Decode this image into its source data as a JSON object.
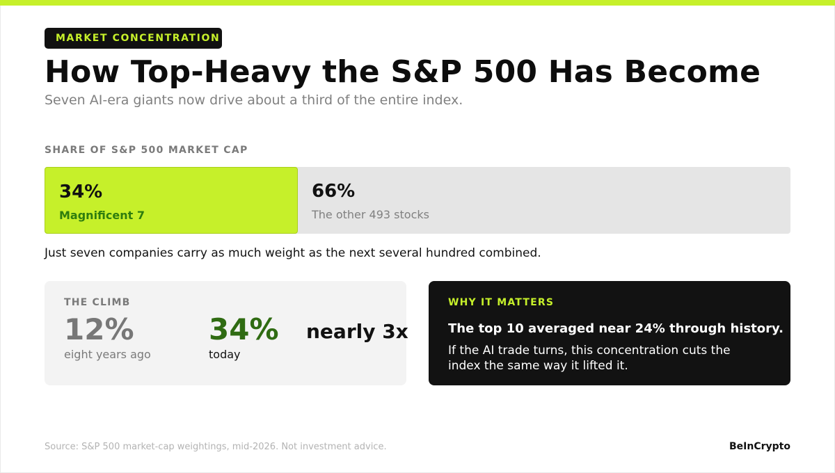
{
  "kicker": "MARKET CONCENTRATION",
  "title": "How Top-Heavy the S&P 500 Has Become",
  "subtitle": "Seven AI-era giants now drive about a third of the entire index.",
  "share": {
    "label": "SHARE OF S&P 500 MARKET CAP",
    "segments": [
      {
        "value": "34%",
        "share": 0.34,
        "label": "Magnificent 7",
        "color": "#c6f02a"
      },
      {
        "value": "66%",
        "share": 0.66,
        "label": "The other 493 stocks",
        "color": "#e5e5e5"
      }
    ]
  },
  "caption": "Just seven companies carry as much weight as the next several hundred combined.",
  "climb": {
    "label": "THE CLIMB",
    "then_value": "12%",
    "then_label": "eight years ago",
    "now_value": "34%",
    "now_label": "today",
    "multiplier": "nearly 3x"
  },
  "why": {
    "label": "WHY IT MATTERS",
    "headline": "The top 10 averaged near 24% through history.",
    "body": "If the AI trade turns, this concentration cuts the index the same way it lifted it."
  },
  "footer": {
    "source": "Source: S&P 500 market-cap weightings, mid-2026. Not investment advice.",
    "brand": "BeInCrypto"
  },
  "colors": {
    "accent": "#c6f02a",
    "accent_text": "#2e7d0e",
    "dark_panel": "#121212"
  }
}
